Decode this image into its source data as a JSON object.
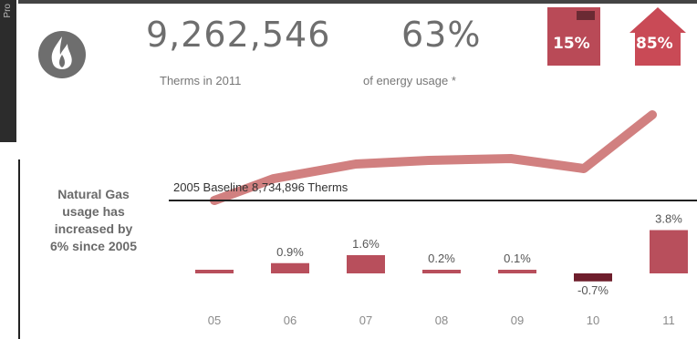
{
  "header": {
    "therms_value": "9,262,546",
    "therms_label": "Therms in 2011",
    "energy_value": "63%",
    "energy_label": "of energy usage *",
    "house_left_value": "15%",
    "house_right_value": "85%",
    "side_tab_text": "Pro"
  },
  "colors": {
    "house_left": "#b94a57",
    "house_right": "#c94a56",
    "trend_line": "#c96a6a",
    "bar_positive": "#b84f5c",
    "bar_negative": "#6e1e2c",
    "text_gray": "#707070"
  },
  "icons": {
    "logo": "flame-icon"
  },
  "side_note": [
    "Natural Gas",
    "usage has",
    "increased by",
    "6% since 2005"
  ],
  "baseline": {
    "label": "2005 Baseline 8,734,896 Therms"
  },
  "chart_data": {
    "type": "bar",
    "title": "",
    "xlabel": "",
    "ylabel": "",
    "categories": [
      "05",
      "06",
      "07",
      "08",
      "09",
      "10",
      "11"
    ],
    "values": [
      0,
      0.9,
      1.6,
      0.2,
      0.1,
      -0.7,
      3.8
    ],
    "value_labels": [
      "",
      "0.9%",
      "1.6%",
      "0.2%",
      "0.1%",
      "-0.7%",
      "3.8%"
    ],
    "ylim": [
      -1,
      4
    ],
    "grid": false,
    "trend_line": {
      "description_values": [
        8.734896,
        9.0,
        9.1,
        9.1,
        9.05,
        9.0,
        9.262546
      ]
    }
  }
}
